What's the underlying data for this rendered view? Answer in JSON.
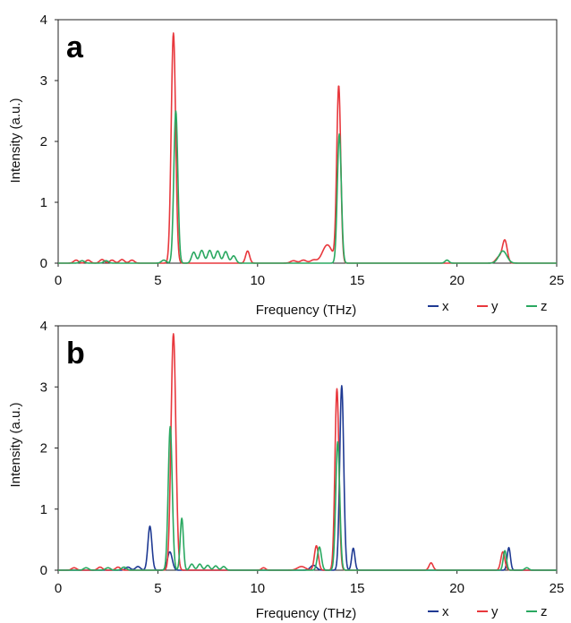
{
  "chart_data": [
    {
      "type": "line",
      "panel_label": "a",
      "xlabel": "Frequency (THz)",
      "ylabel": "Intensity (a.u.)",
      "xlim": [
        0,
        25
      ],
      "ylim": [
        0,
        4
      ],
      "xticks": [
        0,
        5,
        10,
        15,
        20,
        25
      ],
      "yticks": [
        0,
        1,
        2,
        3,
        4
      ],
      "grid": false,
      "legend_position": "bottom-right",
      "series": [
        {
          "name": "x",
          "color": "#1f3a93",
          "peaks": []
        },
        {
          "name": "y",
          "color": "#e8383d",
          "peaks": [
            {
              "x": 0.9,
              "h": 0.05,
              "w": 0.12
            },
            {
              "x": 1.5,
              "h": 0.05,
              "w": 0.12
            },
            {
              "x": 2.2,
              "h": 0.06,
              "w": 0.12
            },
            {
              "x": 2.7,
              "h": 0.05,
              "w": 0.12
            },
            {
              "x": 3.2,
              "h": 0.06,
              "w": 0.12
            },
            {
              "x": 3.7,
              "h": 0.05,
              "w": 0.12
            },
            {
              "x": 5.78,
              "h": 3.78,
              "w": 0.11
            },
            {
              "x": 9.5,
              "h": 0.2,
              "w": 0.1
            },
            {
              "x": 11.8,
              "h": 0.04,
              "w": 0.15
            },
            {
              "x": 12.3,
              "h": 0.05,
              "w": 0.15
            },
            {
              "x": 12.8,
              "h": 0.05,
              "w": 0.15
            },
            {
              "x": 13.5,
              "h": 0.3,
              "w": 0.25
            },
            {
              "x": 14.07,
              "h": 2.9,
              "w": 0.1
            },
            {
              "x": 22.4,
              "h": 0.37,
              "w": 0.12
            },
            {
              "x": 22.1,
              "h": 0.1,
              "w": 0.15
            }
          ]
        },
        {
          "name": "z",
          "color": "#2aa860",
          "peaks": [
            {
              "x": 1.2,
              "h": 0.04,
              "w": 0.12
            },
            {
              "x": 2.4,
              "h": 0.04,
              "w": 0.12
            },
            {
              "x": 5.3,
              "h": 0.05,
              "w": 0.12
            },
            {
              "x": 5.9,
              "h": 2.5,
              "w": 0.1
            },
            {
              "x": 6.8,
              "h": 0.18,
              "w": 0.11
            },
            {
              "x": 7.2,
              "h": 0.21,
              "w": 0.11
            },
            {
              "x": 7.6,
              "h": 0.21,
              "w": 0.11
            },
            {
              "x": 8.0,
              "h": 0.2,
              "w": 0.11
            },
            {
              "x": 8.4,
              "h": 0.19,
              "w": 0.11
            },
            {
              "x": 8.8,
              "h": 0.12,
              "w": 0.11
            },
            {
              "x": 14.1,
              "h": 2.12,
              "w": 0.1
            },
            {
              "x": 19.5,
              "h": 0.05,
              "w": 0.1
            },
            {
              "x": 22.3,
              "h": 0.2,
              "w": 0.2
            }
          ]
        }
      ]
    },
    {
      "type": "line",
      "panel_label": "b",
      "xlabel": "Frequency (THz)",
      "ylabel": "Intensity (a.u.)",
      "xlim": [
        0,
        25
      ],
      "ylim": [
        0,
        4
      ],
      "xticks": [
        0,
        5,
        10,
        15,
        20,
        25
      ],
      "yticks": [
        0,
        1,
        2,
        3,
        4
      ],
      "grid": false,
      "legend_position": "bottom-right",
      "series": [
        {
          "name": "x",
          "color": "#1f3a93",
          "peaks": [
            {
              "x": 3.5,
              "h": 0.05,
              "w": 0.12
            },
            {
              "x": 4.0,
              "h": 0.06,
              "w": 0.12
            },
            {
              "x": 4.6,
              "h": 0.72,
              "w": 0.1
            },
            {
              "x": 5.6,
              "h": 0.3,
              "w": 0.12
            },
            {
              "x": 12.8,
              "h": 0.08,
              "w": 0.15
            },
            {
              "x": 14.22,
              "h": 3.02,
              "w": 0.1
            },
            {
              "x": 14.8,
              "h": 0.36,
              "w": 0.08
            },
            {
              "x": 22.6,
              "h": 0.37,
              "w": 0.08
            }
          ]
        },
        {
          "name": "y",
          "color": "#e8383d",
          "peaks": [
            {
              "x": 0.8,
              "h": 0.04,
              "w": 0.12
            },
            {
              "x": 2.1,
              "h": 0.05,
              "w": 0.12
            },
            {
              "x": 3.0,
              "h": 0.05,
              "w": 0.12
            },
            {
              "x": 5.78,
              "h": 3.87,
              "w": 0.12
            },
            {
              "x": 10.3,
              "h": 0.04,
              "w": 0.1
            },
            {
              "x": 12.2,
              "h": 0.06,
              "w": 0.2
            },
            {
              "x": 12.95,
              "h": 0.4,
              "w": 0.1
            },
            {
              "x": 13.98,
              "h": 2.97,
              "w": 0.1
            },
            {
              "x": 18.7,
              "h": 0.12,
              "w": 0.1
            },
            {
              "x": 22.3,
              "h": 0.3,
              "w": 0.1
            }
          ]
        },
        {
          "name": "z",
          "color": "#2aa860",
          "peaks": [
            {
              "x": 1.4,
              "h": 0.04,
              "w": 0.12
            },
            {
              "x": 2.5,
              "h": 0.04,
              "w": 0.12
            },
            {
              "x": 3.3,
              "h": 0.05,
              "w": 0.12
            },
            {
              "x": 5.62,
              "h": 2.35,
              "w": 0.1
            },
            {
              "x": 6.2,
              "h": 0.85,
              "w": 0.08
            },
            {
              "x": 6.7,
              "h": 0.1,
              "w": 0.1
            },
            {
              "x": 7.1,
              "h": 0.1,
              "w": 0.1
            },
            {
              "x": 7.5,
              "h": 0.08,
              "w": 0.1
            },
            {
              "x": 7.9,
              "h": 0.07,
              "w": 0.1
            },
            {
              "x": 8.3,
              "h": 0.06,
              "w": 0.1
            },
            {
              "x": 13.1,
              "h": 0.38,
              "w": 0.1
            },
            {
              "x": 14.02,
              "h": 2.1,
              "w": 0.1
            },
            {
              "x": 22.4,
              "h": 0.32,
              "w": 0.08
            },
            {
              "x": 23.5,
              "h": 0.04,
              "w": 0.1
            }
          ]
        }
      ]
    }
  ]
}
